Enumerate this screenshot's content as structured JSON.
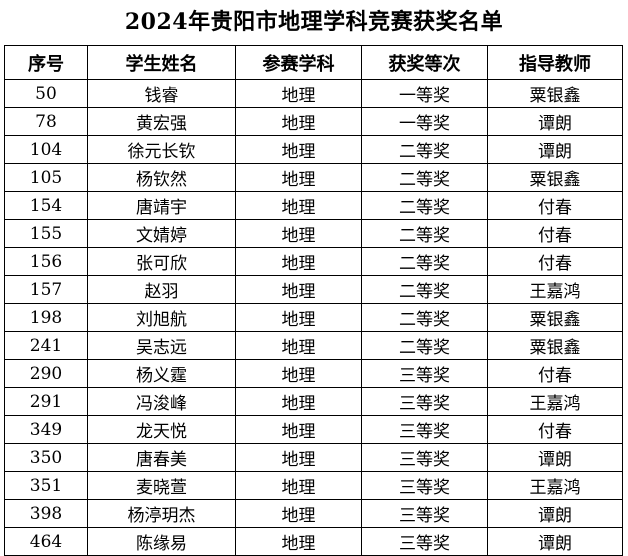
{
  "title": "2024年贵阳市地理学科竞赛获奖名单",
  "table": {
    "headers": [
      "序号",
      "学生姓名",
      "参赛学科",
      "获奖等次",
      "指导教师"
    ],
    "rows": [
      [
        "50",
        "钱睿",
        "地理",
        "一等奖",
        "粟银鑫"
      ],
      [
        "78",
        "黄宏强",
        "地理",
        "一等奖",
        "谭朗"
      ],
      [
        "104",
        "徐元长钦",
        "地理",
        "二等奖",
        "谭朗"
      ],
      [
        "105",
        "杨钦然",
        "地理",
        "二等奖",
        "粟银鑫"
      ],
      [
        "154",
        "唐靖宇",
        "地理",
        "二等奖",
        "付春"
      ],
      [
        "155",
        "文婧婷",
        "地理",
        "二等奖",
        "付春"
      ],
      [
        "156",
        "张可欣",
        "地理",
        "二等奖",
        "付春"
      ],
      [
        "157",
        "赵羽",
        "地理",
        "二等奖",
        "王嘉鸿"
      ],
      [
        "198",
        "刘旭航",
        "地理",
        "二等奖",
        "粟银鑫"
      ],
      [
        "241",
        "吴志远",
        "地理",
        "二等奖",
        "粟银鑫"
      ],
      [
        "290",
        "杨义霆",
        "地理",
        "三等奖",
        "付春"
      ],
      [
        "291",
        "冯浚峰",
        "地理",
        "三等奖",
        "王嘉鸿"
      ],
      [
        "349",
        "龙天悦",
        "地理",
        "三等奖",
        "付春"
      ],
      [
        "350",
        "唐春美",
        "地理",
        "三等奖",
        "谭朗"
      ],
      [
        "351",
        "麦晓萱",
        "地理",
        "三等奖",
        "王嘉鸿"
      ],
      [
        "398",
        "杨渟玥杰",
        "地理",
        "三等奖",
        "谭朗"
      ],
      [
        "464",
        "陈缘易",
        "地理",
        "三等奖",
        "谭朗"
      ]
    ]
  }
}
